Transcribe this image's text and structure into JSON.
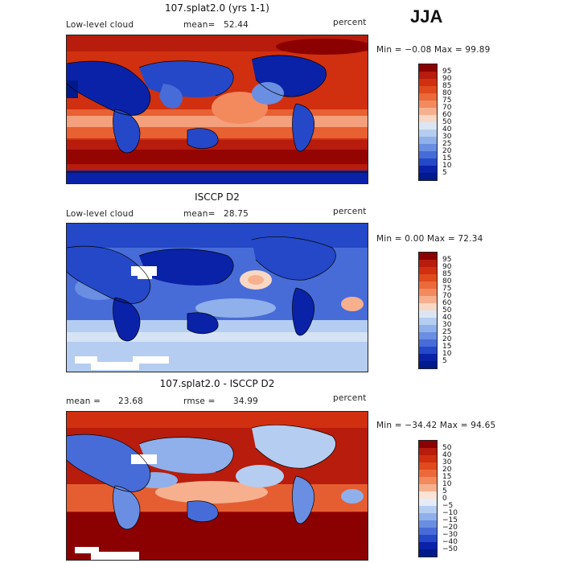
{
  "season": "JJA",
  "panels": [
    {
      "title": "107.splat2.0 (yrs 1-1)",
      "left_label": "Low-level cloud",
      "mid_label": "mean=",
      "mid_value": "52.44",
      "right_label": "percent",
      "minmax": "Min =  −0.08 Max =  99.89",
      "colorbar_labels": [
        "95",
        "90",
        "85",
        "80",
        "75",
        "70",
        "60",
        "50",
        "40",
        "30",
        "25",
        "20",
        "15",
        "10",
        "5"
      ],
      "colorbar_colors": [
        "#8b0000",
        "#b71c0c",
        "#d0300f",
        "#e04a1c",
        "#ec6a3a",
        "#f28a5e",
        "#f7b08e",
        "#f8d8c4",
        "#dbe6f5",
        "#b5cdf0",
        "#8fb0ea",
        "#6a8ee2",
        "#476cd8",
        "#2448c8",
        "#0a22a8",
        "#001a8c"
      ]
    },
    {
      "title": "ISCCP D2",
      "left_label": "Low-level cloud",
      "mid_label": "mean=",
      "mid_value": "28.75",
      "right_label": "percent",
      "minmax": "Min =   0.00 Max =  72.34",
      "colorbar_labels": [
        "95",
        "90",
        "85",
        "80",
        "75",
        "70",
        "60",
        "50",
        "40",
        "30",
        "25",
        "20",
        "15",
        "10",
        "5"
      ],
      "colorbar_colors": [
        "#8b0000",
        "#b71c0c",
        "#d0300f",
        "#e04a1c",
        "#ec6a3a",
        "#f28a5e",
        "#f7b08e",
        "#f8d8c4",
        "#dbe6f5",
        "#b5cdf0",
        "#8fb0ea",
        "#6a8ee2",
        "#476cd8",
        "#2448c8",
        "#0a22a8",
        "#001a8c"
      ]
    },
    {
      "title": "107.splat2.0 - ISCCP D2",
      "left_label": "mean =",
      "left_value": "23.68",
      "mid_label": "rmse =",
      "mid_value": "34.99",
      "right_label": "percent",
      "minmax": "Min = −34.42 Max =  94.65",
      "colorbar_labels": [
        "50",
        "40",
        "30",
        "20",
        "15",
        "10",
        "5",
        "0",
        "−5",
        "−10",
        "−15",
        "−20",
        "−30",
        "−40",
        "−50"
      ],
      "colorbar_colors": [
        "#8b0000",
        "#b71c0c",
        "#d0300f",
        "#e04a1c",
        "#ec6a3a",
        "#f28a5e",
        "#f7b08e",
        "#fbe3d6",
        "#e4ecf8",
        "#b5cdf0",
        "#8fb0ea",
        "#6a8ee2",
        "#476cd8",
        "#2448c8",
        "#0a22a8",
        "#001a8c"
      ]
    }
  ]
}
